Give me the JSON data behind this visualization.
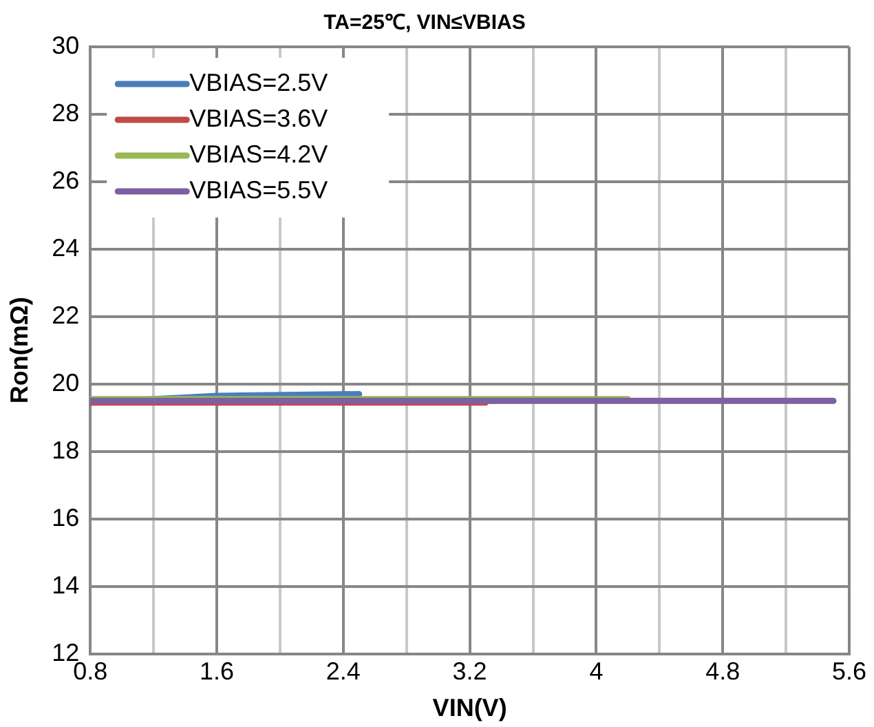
{
  "chart_data": {
    "type": "line",
    "title": "TA=25℃, VIN≤VBIAS",
    "xlabel": "VIN(V)",
    "ylabel": "Ron(mΩ)",
    "xlim": [
      0.8,
      5.6
    ],
    "xticks": [
      0.8,
      {
        "value": 1.2,
        "label": null
      },
      1.6,
      {
        "value": 2.0,
        "label": null
      },
      2.4,
      {
        "value": 2.8,
        "label": null
      },
      3.2,
      {
        "value": 3.6,
        "label": null
      },
      4,
      {
        "value": 4.4,
        "label": null
      },
      4.8,
      {
        "value": 5.2,
        "label": null
      },
      5.6
    ],
    "ylim": [
      12,
      30
    ],
    "yticks": [
      12,
      14,
      16,
      18,
      20,
      22,
      24,
      26,
      28,
      30
    ],
    "grid": true,
    "legend": "top left",
    "marker": "none",
    "line_style": "solid",
    "series": [
      {
        "name": "VBIAS=2.5V",
        "color": "#4a7ebb",
        "x": [
          0.8,
          1.6,
          2.5
        ],
        "values": [
          19.45,
          19.65,
          19.7
        ]
      },
      {
        "name": "VBIAS=3.6V",
        "color": "#be4b48",
        "x": [
          0.8,
          3.3
        ],
        "values": [
          19.45,
          19.45
        ]
      },
      {
        "name": "VBIAS=4.2V",
        "color": "#98b954",
        "x": [
          0.8,
          4.2
        ],
        "values": [
          19.55,
          19.55
        ]
      },
      {
        "name": "VBIAS=5.5V",
        "color": "#7d60a0",
        "x": [
          0.8,
          5.5
        ],
        "values": [
          19.5,
          19.5
        ]
      }
    ]
  }
}
